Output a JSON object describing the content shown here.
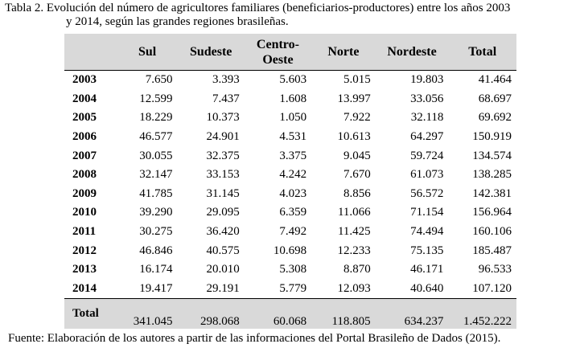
{
  "caption": {
    "line1": "Tabla 2. Evolución del número de agricultores familiares (beneficiarios-productores) entre los años 2003",
    "line2": "y 2014, según las grandes regiones brasileñas."
  },
  "table": {
    "header": [
      "",
      "Sul",
      "Sudeste",
      "Centro-Oeste",
      "Norte",
      "Nordeste",
      "Total"
    ],
    "rows": [
      [
        "2003",
        "7.650",
        "3.393",
        "5.603",
        "5.015",
        "19.803",
        "41.464"
      ],
      [
        "2004",
        "12.599",
        "7.437",
        "1.608",
        "13.997",
        "33.056",
        "68.697"
      ],
      [
        "2005",
        "18.229",
        "10.373",
        "1.050",
        "7.922",
        "32.118",
        "69.692"
      ],
      [
        "2006",
        "46.577",
        "24.901",
        "4.531",
        "10.613",
        "64.297",
        "150.919"
      ],
      [
        "2007",
        "30.055",
        "32.375",
        "3.375",
        "9.045",
        "59.724",
        "134.574"
      ],
      [
        "2008",
        "32.147",
        "33.153",
        "4.242",
        "7.670",
        "61.073",
        "138.285"
      ],
      [
        "2009",
        "41.785",
        "31.145",
        "4.023",
        "8.856",
        "56.572",
        "142.381"
      ],
      [
        "2010",
        "39.290",
        "29.095",
        "6.359",
        "11.066",
        "71.154",
        "156.964"
      ],
      [
        "2011",
        "30.275",
        "36.420",
        "7.492",
        "11.425",
        "74.494",
        "160.106"
      ],
      [
        "2012",
        "46.846",
        "40.575",
        "10.698",
        "12.233",
        "75.135",
        "185.487"
      ],
      [
        "2013",
        "16.174",
        "20.010",
        "5.308",
        "8.870",
        "46.171",
        "96.533"
      ],
      [
        "2014",
        "19.417",
        "29.191",
        "5.779",
        "12.093",
        "40.640",
        "107.120"
      ]
    ],
    "total": [
      "Total",
      "341.045",
      "298.068",
      "60.068",
      "118.805",
      "634.237",
      "1.452.222"
    ]
  },
  "source": "Fuente: Elaboración de los autores a partir de las informaciones del Portal Brasileño de Dados (2015)."
}
